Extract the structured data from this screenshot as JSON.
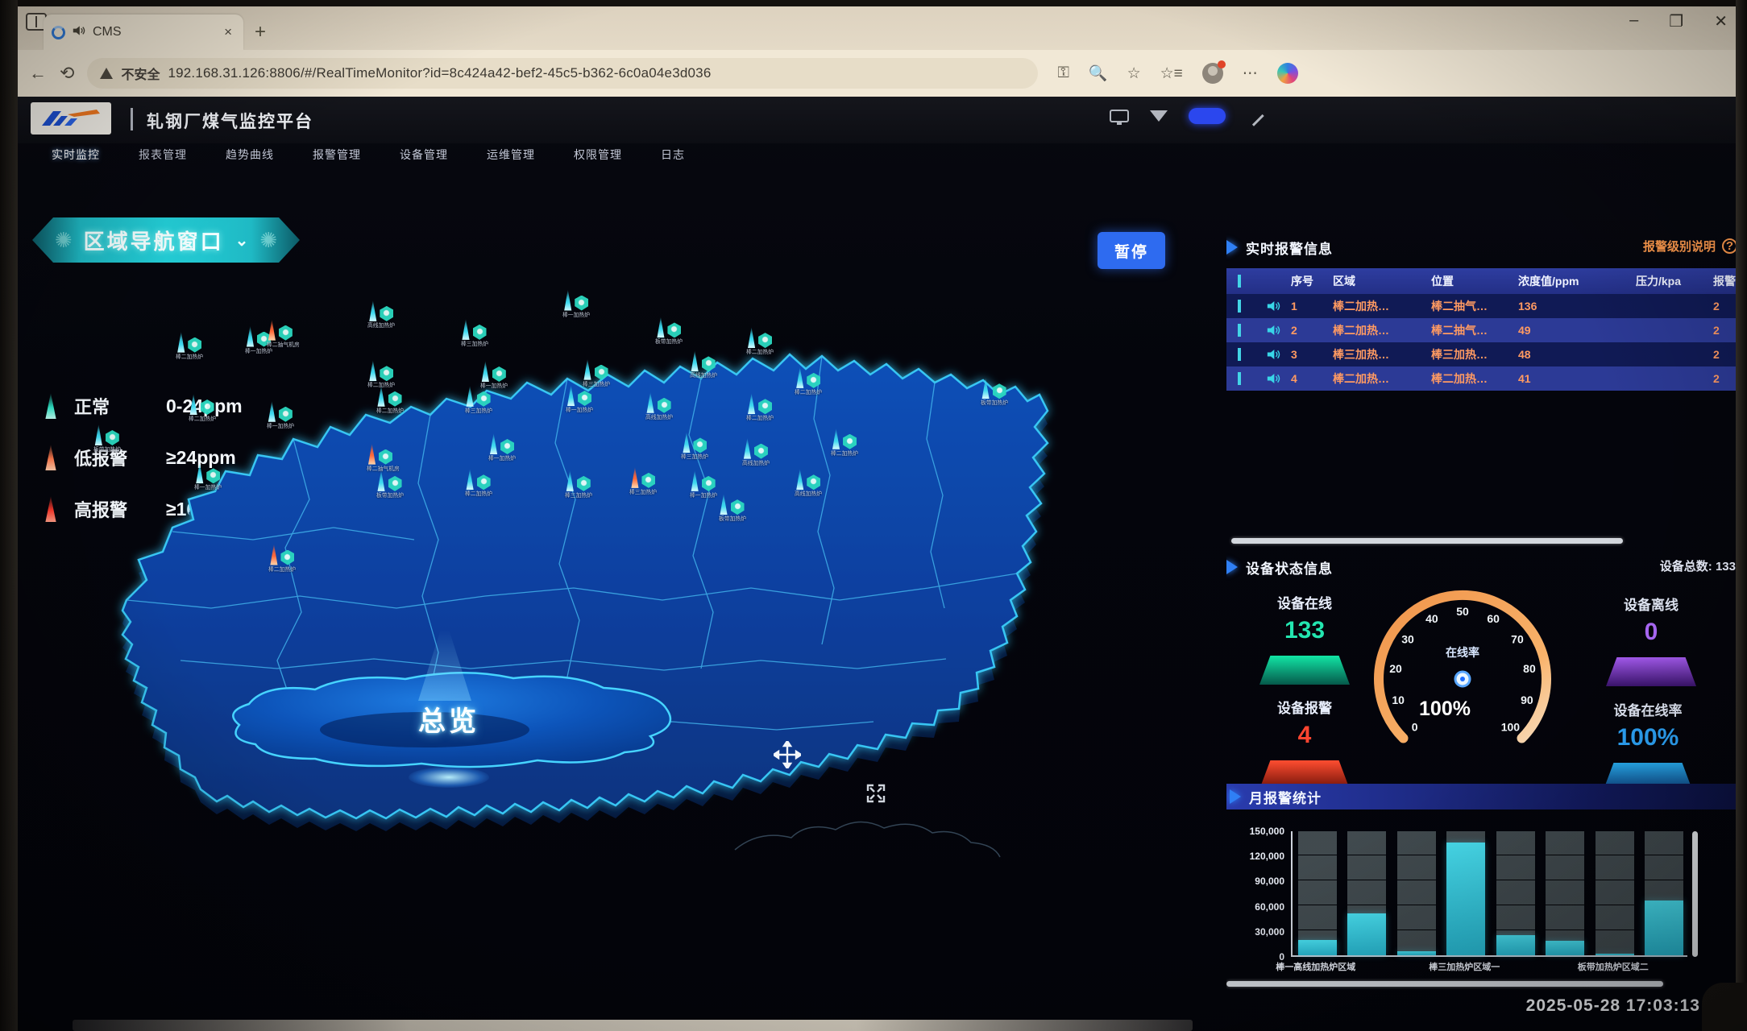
{
  "browser": {
    "tab": {
      "title": "CMS",
      "close": "×",
      "speaker_icon": "speaker-icon",
      "favicon": "loading-ring-icon"
    },
    "new_tab": "+",
    "window_controls": {
      "minimize": "–",
      "restore": "❐",
      "close": "✕"
    },
    "back": "←",
    "refresh": "⟲",
    "address": {
      "security_label": "不安全",
      "url": "192.168.31.126:8806/#/RealTimeMonitor?id=8c424a42-bef2-45c5-b362-6c0a04e3d036"
    },
    "toolbar_icons": [
      "key-icon",
      "zoom-icon",
      "favorites-star-icon",
      "collections-icon",
      "profile-avatar",
      "more-menu-icon",
      "copilot-icon"
    ]
  },
  "app": {
    "title": "轧钢厂煤气监控平台",
    "header_icons": [
      "screen-mirror-icon",
      "filter-icon",
      "device-status-pill",
      "signature-icon"
    ],
    "nav": [
      {
        "label": "实时监控",
        "active": true
      },
      {
        "label": "报表管理",
        "active": false
      },
      {
        "label": "趋势曲线",
        "active": false
      },
      {
        "label": "报警管理",
        "active": false
      },
      {
        "label": "设备管理",
        "active": false
      },
      {
        "label": "运维管理",
        "active": false
      },
      {
        "label": "权限管理",
        "active": false
      },
      {
        "label": "日志",
        "active": false
      }
    ],
    "region_selector": {
      "label": "区域导航窗口"
    },
    "pause_button": "暂停",
    "legend": [
      {
        "label": "正常",
        "range": "0-24ppm",
        "type": "n",
        "color": "#2ee6c8"
      },
      {
        "label": "低报警",
        "range": "≥24ppm",
        "type": "lo",
        "color": "#ff7a4d"
      },
      {
        "label": "高报警",
        "range": "≥160ppm",
        "type": "hi",
        "color": "#ff3b2e"
      }
    ],
    "map": {
      "overview_label": "总览",
      "markers": [
        {
          "x": 13.3,
          "y": 11.6,
          "t": "n",
          "l": "棒二加热炉"
        },
        {
          "x": 20.0,
          "y": 10.7,
          "t": "n",
          "l": "棒一加热炉"
        },
        {
          "x": 22.1,
          "y": 9.7,
          "t": "a",
          "l": "棒二抽气机房"
        },
        {
          "x": 31.9,
          "y": 6.7,
          "t": "n",
          "l": "高线加热炉"
        },
        {
          "x": 40.9,
          "y": 9.6,
          "t": "n",
          "l": "棒三加热炉"
        },
        {
          "x": 50.8,
          "y": 5.0,
          "t": "n",
          "l": "棒一加热炉"
        },
        {
          "x": 59.8,
          "y": 9.3,
          "t": "n",
          "l": "板带加热炉"
        },
        {
          "x": 68.6,
          "y": 10.9,
          "t": "n",
          "l": "棒二加热炉"
        },
        {
          "x": 31.9,
          "y": 16.1,
          "t": "n",
          "l": "棒二加热炉"
        },
        {
          "x": 42.8,
          "y": 16.2,
          "t": "n",
          "l": "棒一加热炉"
        },
        {
          "x": 52.7,
          "y": 15.9,
          "t": "n",
          "l": "棒三加热炉"
        },
        {
          "x": 63.1,
          "y": 14.6,
          "t": "n",
          "l": "高线加热炉"
        },
        {
          "x": 73.3,
          "y": 17.2,
          "t": "n",
          "l": "棒二加热炉"
        },
        {
          "x": 91.3,
          "y": 18.9,
          "t": "n",
          "l": "板带加热炉"
        },
        {
          "x": 14.5,
          "y": 21.4,
          "t": "n",
          "l": "棒二加热炉"
        },
        {
          "x": 22.1,
          "y": 22.5,
          "t": "n",
          "l": "棒一加热炉"
        },
        {
          "x": 32.7,
          "y": 20.1,
          "t": "n",
          "l": "棒二加热炉"
        },
        {
          "x": 41.3,
          "y": 20.1,
          "t": "n",
          "l": "棒三加热炉"
        },
        {
          "x": 51.1,
          "y": 20.0,
          "t": "n",
          "l": "棒一加热炉"
        },
        {
          "x": 58.8,
          "y": 21.1,
          "t": "n",
          "l": "高线加热炉"
        },
        {
          "x": 68.6,
          "y": 21.3,
          "t": "n",
          "l": "棒二加热炉"
        },
        {
          "x": 5.3,
          "y": 26.2,
          "t": "n",
          "l": "板带加热炉"
        },
        {
          "x": 31.8,
          "y": 29.2,
          "t": "a",
          "l": "棒二抽气机房"
        },
        {
          "x": 43.6,
          "y": 27.6,
          "t": "n",
          "l": "棒一加热炉"
        },
        {
          "x": 62.3,
          "y": 27.4,
          "t": "n",
          "l": "棒三加热炉"
        },
        {
          "x": 68.2,
          "y": 28.3,
          "t": "n",
          "l": "高线加热炉"
        },
        {
          "x": 76.8,
          "y": 26.8,
          "t": "n",
          "l": "棒二加热炉"
        },
        {
          "x": 15.1,
          "y": 32.2,
          "t": "n",
          "l": "棒一加热炉"
        },
        {
          "x": 32.7,
          "y": 33.4,
          "t": "n",
          "l": "板带加热炉"
        },
        {
          "x": 41.3,
          "y": 33.2,
          "t": "n",
          "l": "棒二加热炉"
        },
        {
          "x": 51.0,
          "y": 33.4,
          "t": "n",
          "l": "棒三加热炉"
        },
        {
          "x": 57.3,
          "y": 32.9,
          "t": "a",
          "l": "棒三加热炉"
        },
        {
          "x": 63.1,
          "y": 33.4,
          "t": "n",
          "l": "棒一加热炉"
        },
        {
          "x": 73.3,
          "y": 33.2,
          "t": "n",
          "l": "高线加热炉"
        },
        {
          "x": 65.9,
          "y": 37.1,
          "t": "n",
          "l": "板带加热炉"
        },
        {
          "x": 22.3,
          "y": 45.0,
          "t": "a",
          "l": "棒二加热炉"
        }
      ]
    },
    "alarm_panel": {
      "title": "实时报警信息",
      "level_link": "报警级别说明",
      "level_help_icon": "?",
      "columns": [
        "序号",
        "区域",
        "位置",
        "浓度值/ppm",
        "压力/kpa",
        "报警级别"
      ],
      "rows": [
        {
          "no": "1",
          "region": "棒二加热…",
          "location": "棒二抽气…",
          "ppm": "136",
          "level": "2"
        },
        {
          "no": "2",
          "region": "棒二加热…",
          "location": "棒二抽气…",
          "ppm": "49",
          "level": "2"
        },
        {
          "no": "3",
          "region": "棒三加热…",
          "location": "棒三加热…",
          "ppm": "48",
          "level": "2"
        },
        {
          "no": "4",
          "region": "棒二加热…",
          "location": "棒二加热…",
          "ppm": "41",
          "level": "2"
        }
      ]
    },
    "device_panel": {
      "title": "设备状态信息",
      "total_label": "设备总数:",
      "total_value": "133",
      "stats": [
        {
          "label": "设备在线",
          "value": "133",
          "color": "#23e6b0"
        },
        {
          "label": "设备报警",
          "value": "4",
          "color": "#ff4530"
        },
        {
          "label": "设备离线",
          "value": "0",
          "color": "#b06cff"
        },
        {
          "label": "设备在线率",
          "value": "100%",
          "color": "#2ea8ff"
        }
      ],
      "gauge": {
        "label": "在线率",
        "value": "100%",
        "ticks": [
          "0",
          "10",
          "20",
          "30",
          "40",
          "50",
          "60",
          "70",
          "80",
          "90",
          "100"
        ],
        "min": 0,
        "max": 100,
        "current": 100
      }
    },
    "monthly_panel": {
      "title": "月报警统计"
    },
    "timestamp": "2025-05-28 17:03:13"
  },
  "chart_data": {
    "type": "bar",
    "title": "月报警统计",
    "categories": [
      "棒一高线加热炉区域",
      "",
      "",
      "棒三加热炉区域一",
      "",
      "",
      "板带加热炉区域二",
      ""
    ],
    "values": [
      18000,
      50000,
      5000,
      135000,
      24000,
      17000,
      1000,
      65000
    ],
    "xlabel": "",
    "ylabel": "",
    "ylim": [
      0,
      150000
    ],
    "yticks": [
      "0",
      "30,000",
      "60,000",
      "90,000",
      "120,000",
      "150,000"
    ],
    "grid": true,
    "legend_position": "none",
    "bar_color": "#35c8dd",
    "backdrop_color": "#485256"
  }
}
